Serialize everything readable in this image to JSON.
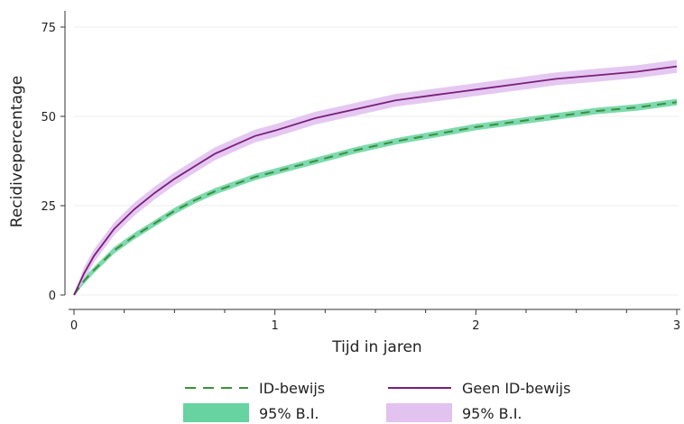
{
  "colors": {
    "id_line": "#3d8f3d",
    "id_band": "#66d3a0",
    "geen_line": "#7a1f7a",
    "geen_band": "#e2c2ef",
    "grid": "#ececec",
    "axis": "#333333"
  },
  "legend": {
    "items": [
      {
        "label": "ID-bewijs",
        "style": "dashed-line",
        "color": "#3d8f3d"
      },
      {
        "label": "Geen ID-bewijs",
        "style": "solid-line",
        "color": "#7a1f7a"
      },
      {
        "label": "95% B.I.",
        "style": "band",
        "color": "#66d3a0"
      },
      {
        "label": "95% B.I.",
        "style": "band",
        "color": "#e2c2ef"
      }
    ]
  },
  "chart_data": {
    "type": "line",
    "title": "",
    "xlabel": "Tijd in jaren",
    "ylabel": "Recidivepercentage",
    "xlim": [
      0,
      3
    ],
    "ylim": [
      0,
      75
    ],
    "xticks": [
      0,
      1,
      2,
      3
    ],
    "yticks": [
      0,
      25,
      50,
      75
    ],
    "grid": true,
    "legend_position": "bottom",
    "x": [
      0,
      0.05,
      0.1,
      0.2,
      0.3,
      0.4,
      0.5,
      0.6,
      0.7,
      0.8,
      0.9,
      1.0,
      1.2,
      1.4,
      1.6,
      1.8,
      2.0,
      2.2,
      2.4,
      2.6,
      2.8,
      3.0
    ],
    "series": [
      {
        "name": "ID-bewijs",
        "values": [
          0,
          4,
          7,
          12.5,
          16.5,
          20,
          23.5,
          26.5,
          29,
          31,
          33,
          34.5,
          37.5,
          40.5,
          43,
          45,
          47,
          48.5,
          50,
          51.5,
          52.5,
          54
        ],
        "band_halfwidth": 0.9
      },
      {
        "name": "Geen ID-bewijs",
        "values": [
          0,
          6,
          11,
          18.5,
          24,
          28.5,
          32.5,
          36,
          39.5,
          42,
          44.5,
          46,
          49.5,
          52,
          54.5,
          56,
          57.5,
          59,
          60.5,
          61.5,
          62.5,
          64
        ],
        "band_halfwidth": 1.8
      }
    ]
  }
}
